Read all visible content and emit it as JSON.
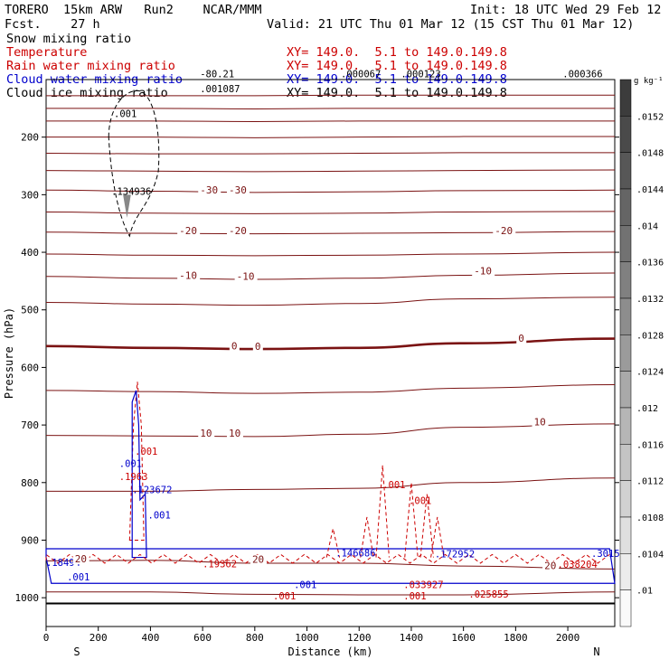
{
  "header": {
    "model_line": "TORERO  15km ARW   Run2    NCAR/MMM",
    "forecast_line": "Fcst.    27 h",
    "init_line": "Init: 18 UTC Wed 29 Feb 12",
    "valid_line": "Valid: 21 UTC Thu 01 Mar 12 (15 CST Thu 01 Mar 12)"
  },
  "fields": [
    {
      "label": "Snow mixing ratio",
      "xy": "",
      "color": "#000000"
    },
    {
      "label": "Temperature",
      "xy": "XY= 149.0.  5.1 to 149.0.149.8",
      "color": "#cc0000"
    },
    {
      "label": "Rain water mixing ratio",
      "xy": "XY= 149.0.  5.1 to 149.0.149.8",
      "color": "#cc0000"
    },
    {
      "label": "Cloud water mixing ratio",
      "xy": "XY= 149.0.  5.1 to 149.0.149.8",
      "color": "#0000cc"
    },
    {
      "label": "Cloud ice mixing ratio",
      "xy": "XY= 149.0.  5.1 to 149.0.149.8",
      "color": "#000000"
    }
  ],
  "first_xy": "XY= 149.0.  5.1 to 149.0.149.8",
  "colorbar": {
    "unit": "g kg⁻¹",
    "ticks": [
      ".0152",
      ".0148",
      ".0144",
      ".014",
      ".0136",
      ".0132",
      ".0128",
      ".0124",
      ".012",
      ".0116",
      ".0112",
      ".0108",
      ".0104",
      ".01"
    ]
  },
  "chart_data": {
    "type": "line",
    "xlabel": "Distance (km)",
    "ylabel": "Pressure (hPa)",
    "xlim": [
      0,
      2180
    ],
    "ylim": [
      1050,
      100
    ],
    "x_ticks": [
      0,
      200,
      400,
      600,
      800,
      1000,
      1200,
      1400,
      1600,
      1800,
      2000
    ],
    "y_ticks": [
      200,
      300,
      400,
      500,
      600,
      700,
      800,
      900,
      1000
    ],
    "left_end": "S",
    "right_end": "N",
    "temperature_labels": [
      {
        "text": "-30",
        "x": 590,
        "p": 296
      },
      {
        "text": "-30",
        "x": 700,
        "p": 296
      },
      {
        "text": "-20",
        "x": 510,
        "p": 367
      },
      {
        "text": "-20",
        "x": 700,
        "p": 367
      },
      {
        "text": "-20",
        "x": 1720,
        "p": 367
      },
      {
        "text": "-10",
        "x": 510,
        "p": 445
      },
      {
        "text": "-10",
        "x": 730,
        "p": 446
      },
      {
        "text": "-10",
        "x": 1640,
        "p": 437
      },
      {
        "text": "0",
        "x": 710,
        "p": 567
      },
      {
        "text": "0",
        "x": 800,
        "p": 568
      },
      {
        "text": "0",
        "x": 1810,
        "p": 554
      },
      {
        "text": "10",
        "x": 590,
        "p": 719
      },
      {
        "text": "10",
        "x": 700,
        "p": 719
      },
      {
        "text": "10",
        "x": 1870,
        "p": 699
      },
      {
        "text": "20",
        "x": 110,
        "p": 937
      },
      {
        "text": "20",
        "x": 790,
        "p": 938
      },
      {
        "text": "20",
        "x": 1910,
        "p": 949
      }
    ],
    "temperature_isotherms": [
      {
        "value": -60,
        "p": [
          128,
          128,
          128,
          127,
          127,
          127
        ]
      },
      {
        "value": -55,
        "p": [
          150,
          150,
          151,
          150,
          150,
          150
        ]
      },
      {
        "value": -50,
        "p": [
          172,
          172,
          173,
          172,
          172,
          172
        ]
      },
      {
        "value": -45,
        "p": [
          200,
          200,
          201,
          200,
          199,
          199
        ]
      },
      {
        "value": -40,
        "p": [
          228,
          229,
          229,
          228,
          227,
          227
        ]
      },
      {
        "value": -35,
        "p": [
          258,
          259,
          260,
          259,
          258,
          257
        ]
      },
      {
        "value": -30,
        "p": [
          292,
          294,
          296,
          295,
          293,
          292
        ]
      },
      {
        "value": -25,
        "p": [
          330,
          332,
          333,
          332,
          330,
          329
        ]
      },
      {
        "value": -20,
        "p": [
          365,
          367,
          368,
          367,
          366,
          364
        ]
      },
      {
        "value": -15,
        "p": [
          403,
          405,
          406,
          405,
          403,
          400
        ]
      },
      {
        "value": -10,
        "p": [
          442,
          445,
          447,
          445,
          440,
          436
        ]
      },
      {
        "value": -5,
        "p": [
          487,
          490,
          492,
          489,
          481,
          478
        ]
      },
      {
        "value": 0,
        "p": [
          563,
          566,
          568,
          566,
          558,
          550
        ]
      },
      {
        "value": 5,
        "p": [
          640,
          642,
          645,
          643,
          636,
          630
        ]
      },
      {
        "value": 10,
        "p": [
          718,
          719,
          720,
          716,
          704,
          698
        ]
      },
      {
        "value": 15,
        "p": [
          815,
          815,
          812,
          810,
          800,
          792
        ]
      },
      {
        "value": 20,
        "p": [
          936,
          935,
          940,
          940,
          945,
          950
        ]
      },
      {
        "value": 25,
        "p": [
          990,
          990,
          994,
          995,
          995,
          990
        ]
      }
    ],
    "isotherm_x": [
      0,
      400,
      800,
      1200,
      1600,
      2180
    ],
    "hydrometeor_labels": [
      {
        "text": ".001",
        "x": 260,
        "p": 165,
        "color": "#000000"
      },
      {
        "text": ".134936",
        "x": 250,
        "p": 300,
        "color": "#000000"
      },
      {
        "text": ".001087",
        "x": 590,
        "p": 122,
        "color": "#000000"
      },
      {
        "text": ".000366",
        "x": 1980,
        "p": 96,
        "color": "#000000"
      },
      {
        "text": ".001",
        "x": 340,
        "p": 752,
        "color": "#cc0000"
      },
      {
        "text": ".1963",
        "x": 280,
        "p": 796,
        "color": "#cc0000"
      },
      {
        "text": ".001",
        "x": 280,
        "p": 773,
        "color": "#0000cc"
      },
      {
        "text": ".123672",
        "x": 330,
        "p": 818,
        "color": "#0000cc"
      },
      {
        "text": ".001",
        "x": 390,
        "p": 862,
        "color": "#0000cc"
      },
      {
        "text": ".001",
        "x": 1290,
        "p": 810,
        "color": "#cc0000"
      },
      {
        "text": ".001",
        "x": 1390,
        "p": 837,
        "color": "#cc0000"
      },
      {
        "text": ".172952",
        "x": 1490,
        "p": 930,
        "color": "#0000cc"
      },
      {
        "text": ".033927",
        "x": 1370,
        "p": 983,
        "color": "#cc0000"
      },
      {
        "text": ".025855",
        "x": 1620,
        "p": 1000,
        "color": "#cc0000"
      },
      {
        "text": ".038204",
        "x": 1960,
        "p": 948,
        "color": "#cc0000"
      },
      {
        "text": ".18494",
        "x": 0,
        "p": 945,
        "color": "#0000cc"
      },
      {
        "text": ".19362",
        "x": 600,
        "p": 947,
        "color": "#cc0000"
      },
      {
        "text": ".146686",
        "x": 1110,
        "p": 928,
        "color": "#0000cc"
      },
      {
        "text": ".001",
        "x": 80,
        "p": 970,
        "color": "#0000cc"
      },
      {
        "text": ".001",
        "x": 950,
        "p": 983,
        "color": "#0000cc"
      },
      {
        "text": ".001",
        "x": 870,
        "p": 1003,
        "color": "#cc0000"
      },
      {
        "text": ".001",
        "x": 1370,
        "p": 1003,
        "color": "#cc0000"
      },
      {
        "text": ".3015",
        "x": 2090,
        "p": 929,
        "color": "#0000cc"
      },
      {
        "text": ".000067",
        "x": 1130,
        "p": 96,
        "color": "#000000"
      },
      {
        "text": ".000123",
        "x": 1360,
        "p": 96,
        "color": "#000000"
      },
      {
        "text": "-80.21",
        "x": 590,
        "p": 96,
        "color": "#000000"
      }
    ]
  }
}
